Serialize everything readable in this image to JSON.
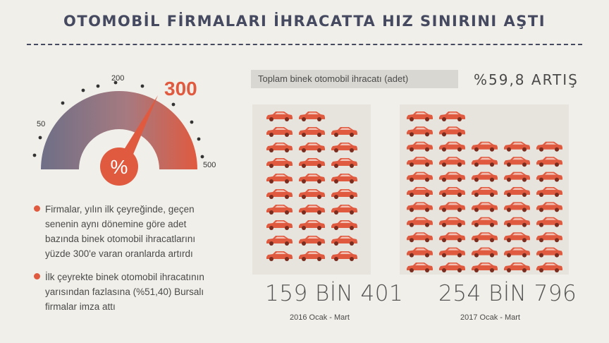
{
  "title": "OTOMOBİL FİRMALARI İHRACATTA HIZ SINIRINI AŞTI",
  "gauge": {
    "value_label": "300",
    "value": 300,
    "max": 500,
    "tick_labels": {
      "t50": "50",
      "t200": "200",
      "t500": "500"
    },
    "symbol": "%",
    "colors": {
      "left": "#6e6f87",
      "right": "#e05a40",
      "needle": "#e05a40"
    }
  },
  "bullets": [
    "Firmalar, yılın ilk çeyreğinde, geçen senenin aynı dönemine göre adet bazında binek otomobil ihracatlarını yüzde 300'e varan oranlarda artırdı",
    "İlk çeyrekte binek otomobil ihracatının yarısından fazlasına (%51,40) Bursalı firmalar imza attı"
  ],
  "comparison": {
    "header": "Toplam binek otomobil ihracatı (adet)",
    "increase": "%59,8 ARTIŞ",
    "car_color": "#e05a40",
    "y2016": {
      "value": "159 BİN 401",
      "period": "2016 Ocak - Mart",
      "car_rows": [
        2,
        3,
        3,
        3,
        3,
        3,
        3,
        3,
        3,
        3
      ]
    },
    "y2017": {
      "value": "254 BİN 796",
      "period": "2017 Ocak - Mart",
      "car_rows": [
        2,
        2,
        5,
        5,
        5,
        5,
        5,
        5,
        5,
        5,
        5
      ]
    }
  }
}
